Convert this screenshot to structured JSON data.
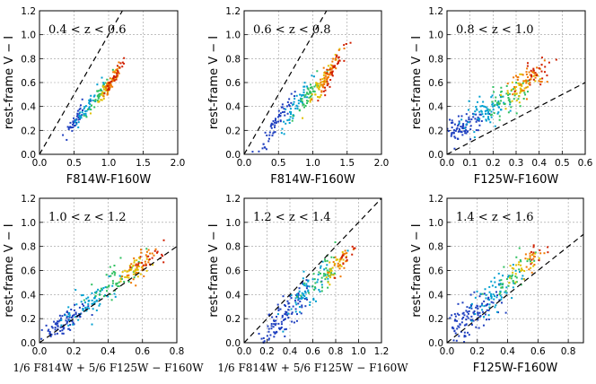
{
  "chart_data": [
    {
      "type": "scatter",
      "annotation": "0.4 < z < 0.6",
      "xlabel": "F814W-F160W",
      "ylabel": "rest-frame V − I",
      "xlim": [
        0.0,
        2.0
      ],
      "ylim": [
        0.0,
        1.2
      ],
      "xticks": [
        "0.0",
        "0.5",
        "1.0",
        "1.5",
        "2.0"
      ],
      "yticks": [
        "0.0",
        "0.2",
        "0.4",
        "0.6",
        "0.8",
        "1.0",
        "1.2"
      ],
      "reference_line": "1:1 dashed",
      "clusters": [
        {
          "x": 0.52,
          "y": 0.28,
          "color": "#1f3fbf",
          "n": 40,
          "sx": 0.1,
          "sy": 0.03
        },
        {
          "x": 0.7,
          "y": 0.4,
          "color": "#00a0d0",
          "n": 40,
          "sx": 0.1,
          "sy": 0.03
        },
        {
          "x": 0.85,
          "y": 0.48,
          "color": "#30c060",
          "n": 35,
          "sx": 0.08,
          "sy": 0.03
        },
        {
          "x": 1.0,
          "y": 0.58,
          "color": "#e0c000",
          "n": 40,
          "sx": 0.08,
          "sy": 0.03
        },
        {
          "x": 1.05,
          "y": 0.62,
          "color": "#f07800",
          "n": 40,
          "sx": 0.07,
          "sy": 0.03
        },
        {
          "x": 1.08,
          "y": 0.64,
          "color": "#d02000",
          "n": 30,
          "sx": 0.07,
          "sy": 0.03
        }
      ]
    },
    {
      "type": "scatter",
      "annotation": "0.6 < z < 0.8",
      "xlabel": "F814W-F160W",
      "ylabel": "rest-frame V − I",
      "xlim": [
        0.0,
        2.0
      ],
      "ylim": [
        0.0,
        1.2
      ],
      "xticks": [
        "0.0",
        "0.5",
        "1.0",
        "1.5",
        "2.0"
      ],
      "yticks": [
        "0.0",
        "0.2",
        "0.4",
        "0.6",
        "0.8",
        "1.0",
        "1.2"
      ],
      "reference_line": "1:1 dashed",
      "clusters": [
        {
          "x": 0.45,
          "y": 0.25,
          "color": "#1f3fbf",
          "n": 60,
          "sx": 0.12,
          "sy": 0.04
        },
        {
          "x": 0.75,
          "y": 0.4,
          "color": "#00a0d0",
          "n": 50,
          "sx": 0.12,
          "sy": 0.04
        },
        {
          "x": 0.95,
          "y": 0.5,
          "color": "#30c060",
          "n": 45,
          "sx": 0.1,
          "sy": 0.04
        },
        {
          "x": 1.1,
          "y": 0.58,
          "color": "#e0c000",
          "n": 45,
          "sx": 0.1,
          "sy": 0.04
        },
        {
          "x": 1.2,
          "y": 0.64,
          "color": "#f07800",
          "n": 45,
          "sx": 0.1,
          "sy": 0.04
        },
        {
          "x": 1.3,
          "y": 0.7,
          "color": "#d02000",
          "n": 35,
          "sx": 0.1,
          "sy": 0.04
        }
      ]
    },
    {
      "type": "scatter",
      "annotation": "0.8 < z < 1.0",
      "xlabel": "F125W-F160W",
      "ylabel": "rest-frame V − I",
      "xlim": [
        0.0,
        0.6
      ],
      "ylim": [
        0.0,
        1.2
      ],
      "xticks": [
        "0.0",
        "0.1",
        "0.2",
        "0.3",
        "0.4",
        "0.5",
        "0.6"
      ],
      "yticks": [
        "0.0",
        "0.2",
        "0.4",
        "0.6",
        "0.8",
        "1.0",
        "1.2"
      ],
      "reference_line": "1:1 dashed",
      "clusters": [
        {
          "x": 0.08,
          "y": 0.24,
          "color": "#1f3fbf",
          "n": 80,
          "sx": 0.04,
          "sy": 0.05
        },
        {
          "x": 0.17,
          "y": 0.34,
          "color": "#00a0d0",
          "n": 70,
          "sx": 0.05,
          "sy": 0.06
        },
        {
          "x": 0.25,
          "y": 0.45,
          "color": "#30c060",
          "n": 50,
          "sx": 0.05,
          "sy": 0.06
        },
        {
          "x": 0.32,
          "y": 0.56,
          "color": "#e0c000",
          "n": 45,
          "sx": 0.04,
          "sy": 0.05
        },
        {
          "x": 0.36,
          "y": 0.64,
          "color": "#f07800",
          "n": 40,
          "sx": 0.04,
          "sy": 0.05
        },
        {
          "x": 0.39,
          "y": 0.7,
          "color": "#d02000",
          "n": 25,
          "sx": 0.04,
          "sy": 0.05
        }
      ]
    },
    {
      "type": "scatter",
      "annotation": "1.0 < z < 1.2",
      "xlabel": "1/6 F814W + 5/6 F125W − F160W",
      "ylabel": "rest-frame V − I",
      "xlim": [
        0.0,
        0.8
      ],
      "ylim": [
        0.0,
        1.2
      ],
      "xticks": [
        "0.0",
        "0.2",
        "0.4",
        "0.6",
        "0.8"
      ],
      "yticks": [
        "0.0",
        "0.2",
        "0.4",
        "0.6",
        "0.8",
        "1.0",
        "1.2"
      ],
      "reference_line": "1:1 dashed",
      "clusters": [
        {
          "x": 0.15,
          "y": 0.18,
          "color": "#1f3fbf",
          "n": 90,
          "sx": 0.08,
          "sy": 0.05
        },
        {
          "x": 0.3,
          "y": 0.35,
          "color": "#00a0d0",
          "n": 70,
          "sx": 0.08,
          "sy": 0.06
        },
        {
          "x": 0.45,
          "y": 0.52,
          "color": "#30c060",
          "n": 45,
          "sx": 0.07,
          "sy": 0.06
        },
        {
          "x": 0.55,
          "y": 0.6,
          "color": "#e0c000",
          "n": 40,
          "sx": 0.05,
          "sy": 0.05
        },
        {
          "x": 0.6,
          "y": 0.65,
          "color": "#f07800",
          "n": 35,
          "sx": 0.05,
          "sy": 0.05
        },
        {
          "x": 0.65,
          "y": 0.7,
          "color": "#d02000",
          "n": 20,
          "sx": 0.04,
          "sy": 0.04
        }
      ]
    },
    {
      "type": "scatter",
      "annotation": "1.2 < z < 1.4",
      "xlabel": "1/6 F814W + 5/6 F125W − F160W",
      "ylabel": "rest-frame V − I",
      "xlim": [
        0.0,
        1.2
      ],
      "ylim": [
        0.0,
        1.2
      ],
      "xticks": [
        "0.0",
        "0.2",
        "0.4",
        "0.6",
        "0.8",
        "1.0",
        "1.2"
      ],
      "yticks": [
        "0.0",
        "0.2",
        "0.4",
        "0.6",
        "0.8",
        "1.0",
        "1.2"
      ],
      "reference_line": "1:1 dashed",
      "clusters": [
        {
          "x": 0.35,
          "y": 0.22,
          "color": "#1f3fbf",
          "n": 110,
          "sx": 0.12,
          "sy": 0.07
        },
        {
          "x": 0.55,
          "y": 0.42,
          "color": "#00a0d0",
          "n": 60,
          "sx": 0.1,
          "sy": 0.07
        },
        {
          "x": 0.7,
          "y": 0.55,
          "color": "#30c060",
          "n": 40,
          "sx": 0.08,
          "sy": 0.06
        },
        {
          "x": 0.8,
          "y": 0.63,
          "color": "#e0c000",
          "n": 30,
          "sx": 0.06,
          "sy": 0.05
        },
        {
          "x": 0.85,
          "y": 0.67,
          "color": "#f07800",
          "n": 20,
          "sx": 0.05,
          "sy": 0.05
        },
        {
          "x": 0.9,
          "y": 0.72,
          "color": "#d02000",
          "n": 12,
          "sx": 0.05,
          "sy": 0.05
        }
      ]
    },
    {
      "type": "scatter",
      "annotation": "1.4 < z < 1.6",
      "xlabel": "F125W-F160W",
      "ylabel": "rest-frame V − I",
      "xlim": [
        0.0,
        0.9
      ],
      "ylim": [
        0.0,
        1.2
      ],
      "xticks": [
        "0.0",
        "0.2",
        "0.4",
        "0.6",
        "0.8"
      ],
      "yticks": [
        "0.0",
        "0.2",
        "0.4",
        "0.6",
        "0.8",
        "1.0",
        "1.2"
      ],
      "reference_line": "1:1 dashed",
      "clusters": [
        {
          "x": 0.15,
          "y": 0.2,
          "color": "#1f3fbf",
          "n": 120,
          "sx": 0.1,
          "sy": 0.08
        },
        {
          "x": 0.32,
          "y": 0.42,
          "color": "#00a0d0",
          "n": 60,
          "sx": 0.08,
          "sy": 0.08
        },
        {
          "x": 0.45,
          "y": 0.58,
          "color": "#30c060",
          "n": 35,
          "sx": 0.07,
          "sy": 0.07
        },
        {
          "x": 0.5,
          "y": 0.64,
          "color": "#e0c000",
          "n": 25,
          "sx": 0.05,
          "sy": 0.06
        },
        {
          "x": 0.55,
          "y": 0.68,
          "color": "#f07800",
          "n": 15,
          "sx": 0.05,
          "sy": 0.06
        },
        {
          "x": 0.6,
          "y": 0.75,
          "color": "#d02000",
          "n": 10,
          "sx": 0.05,
          "sy": 0.05
        }
      ]
    }
  ]
}
